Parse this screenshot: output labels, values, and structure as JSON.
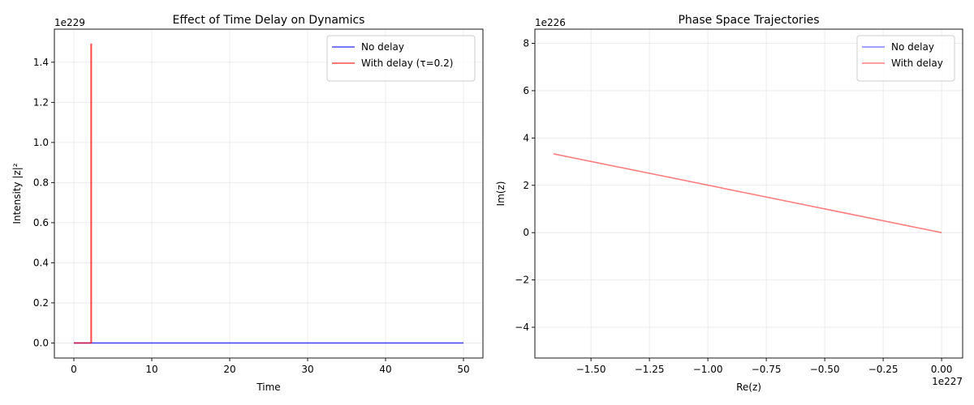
{
  "chart_data": [
    {
      "type": "line",
      "title": "Effect of Time Delay on Dynamics",
      "xlabel": "Time",
      "ylabel": "Intensity |z|²",
      "offset_label": "1e229",
      "xlim": [
        -2.5,
        52.5
      ],
      "ylim": [
        -0.075,
        1.565
      ],
      "xticks": [
        0,
        10,
        20,
        30,
        40,
        50
      ],
      "xtick_labels": [
        "0",
        "10",
        "20",
        "30",
        "40",
        "50"
      ],
      "yticks": [
        0.0,
        0.2,
        0.4,
        0.6,
        0.8,
        1.0,
        1.2,
        1.4
      ],
      "ytick_labels": [
        "0.0",
        "0.2",
        "0.4",
        "0.6",
        "0.8",
        "1.0",
        "1.2",
        "1.4"
      ],
      "grid": true,
      "legend_position": "top-right",
      "series": [
        {
          "name": "No delay",
          "color": "#0000ff",
          "opacity": 0.7,
          "x": [
            0,
            50
          ],
          "y": [
            0,
            0
          ]
        },
        {
          "name": "With delay (τ=0.2)",
          "color": "#ff0000",
          "opacity": 0.7,
          "x": [
            0,
            2.1,
            2.2,
            2.2,
            2.25,
            2.25
          ],
          "y": [
            0,
            0,
            0,
            1.49,
            1.49,
            0
          ]
        }
      ]
    },
    {
      "type": "line",
      "title": "Phase Space Trajectories",
      "xlabel": "Re(z)",
      "ylabel": "Im(z)",
      "x_offset_label": "1e227",
      "y_offset_label": "1e226",
      "xlim": [
        -1.74,
        0.09
      ],
      "ylim": [
        -5.3,
        8.6
      ],
      "xticks": [
        -1.5,
        -1.25,
        -1.0,
        -0.75,
        -0.5,
        -0.25,
        0.0
      ],
      "xtick_labels": [
        "−1.50",
        "−1.25",
        "−1.00",
        "−0.75",
        "−0.50",
        "−0.25",
        "0.00"
      ],
      "yticks": [
        -4,
        -2,
        0,
        2,
        4,
        6,
        8
      ],
      "ytick_labels": [
        "−4",
        "−2",
        "0",
        "2",
        "4",
        "6",
        "8"
      ],
      "grid": true,
      "legend_position": "top-right",
      "series": [
        {
          "name": "No delay",
          "color": "#0000ff",
          "opacity": 0.5,
          "x": [],
          "y": []
        },
        {
          "name": "With delay",
          "color": "#ff0000",
          "opacity": 0.5,
          "x": [
            -1.66,
            0.0
          ],
          "y": [
            3.33,
            0.0
          ]
        }
      ]
    }
  ]
}
